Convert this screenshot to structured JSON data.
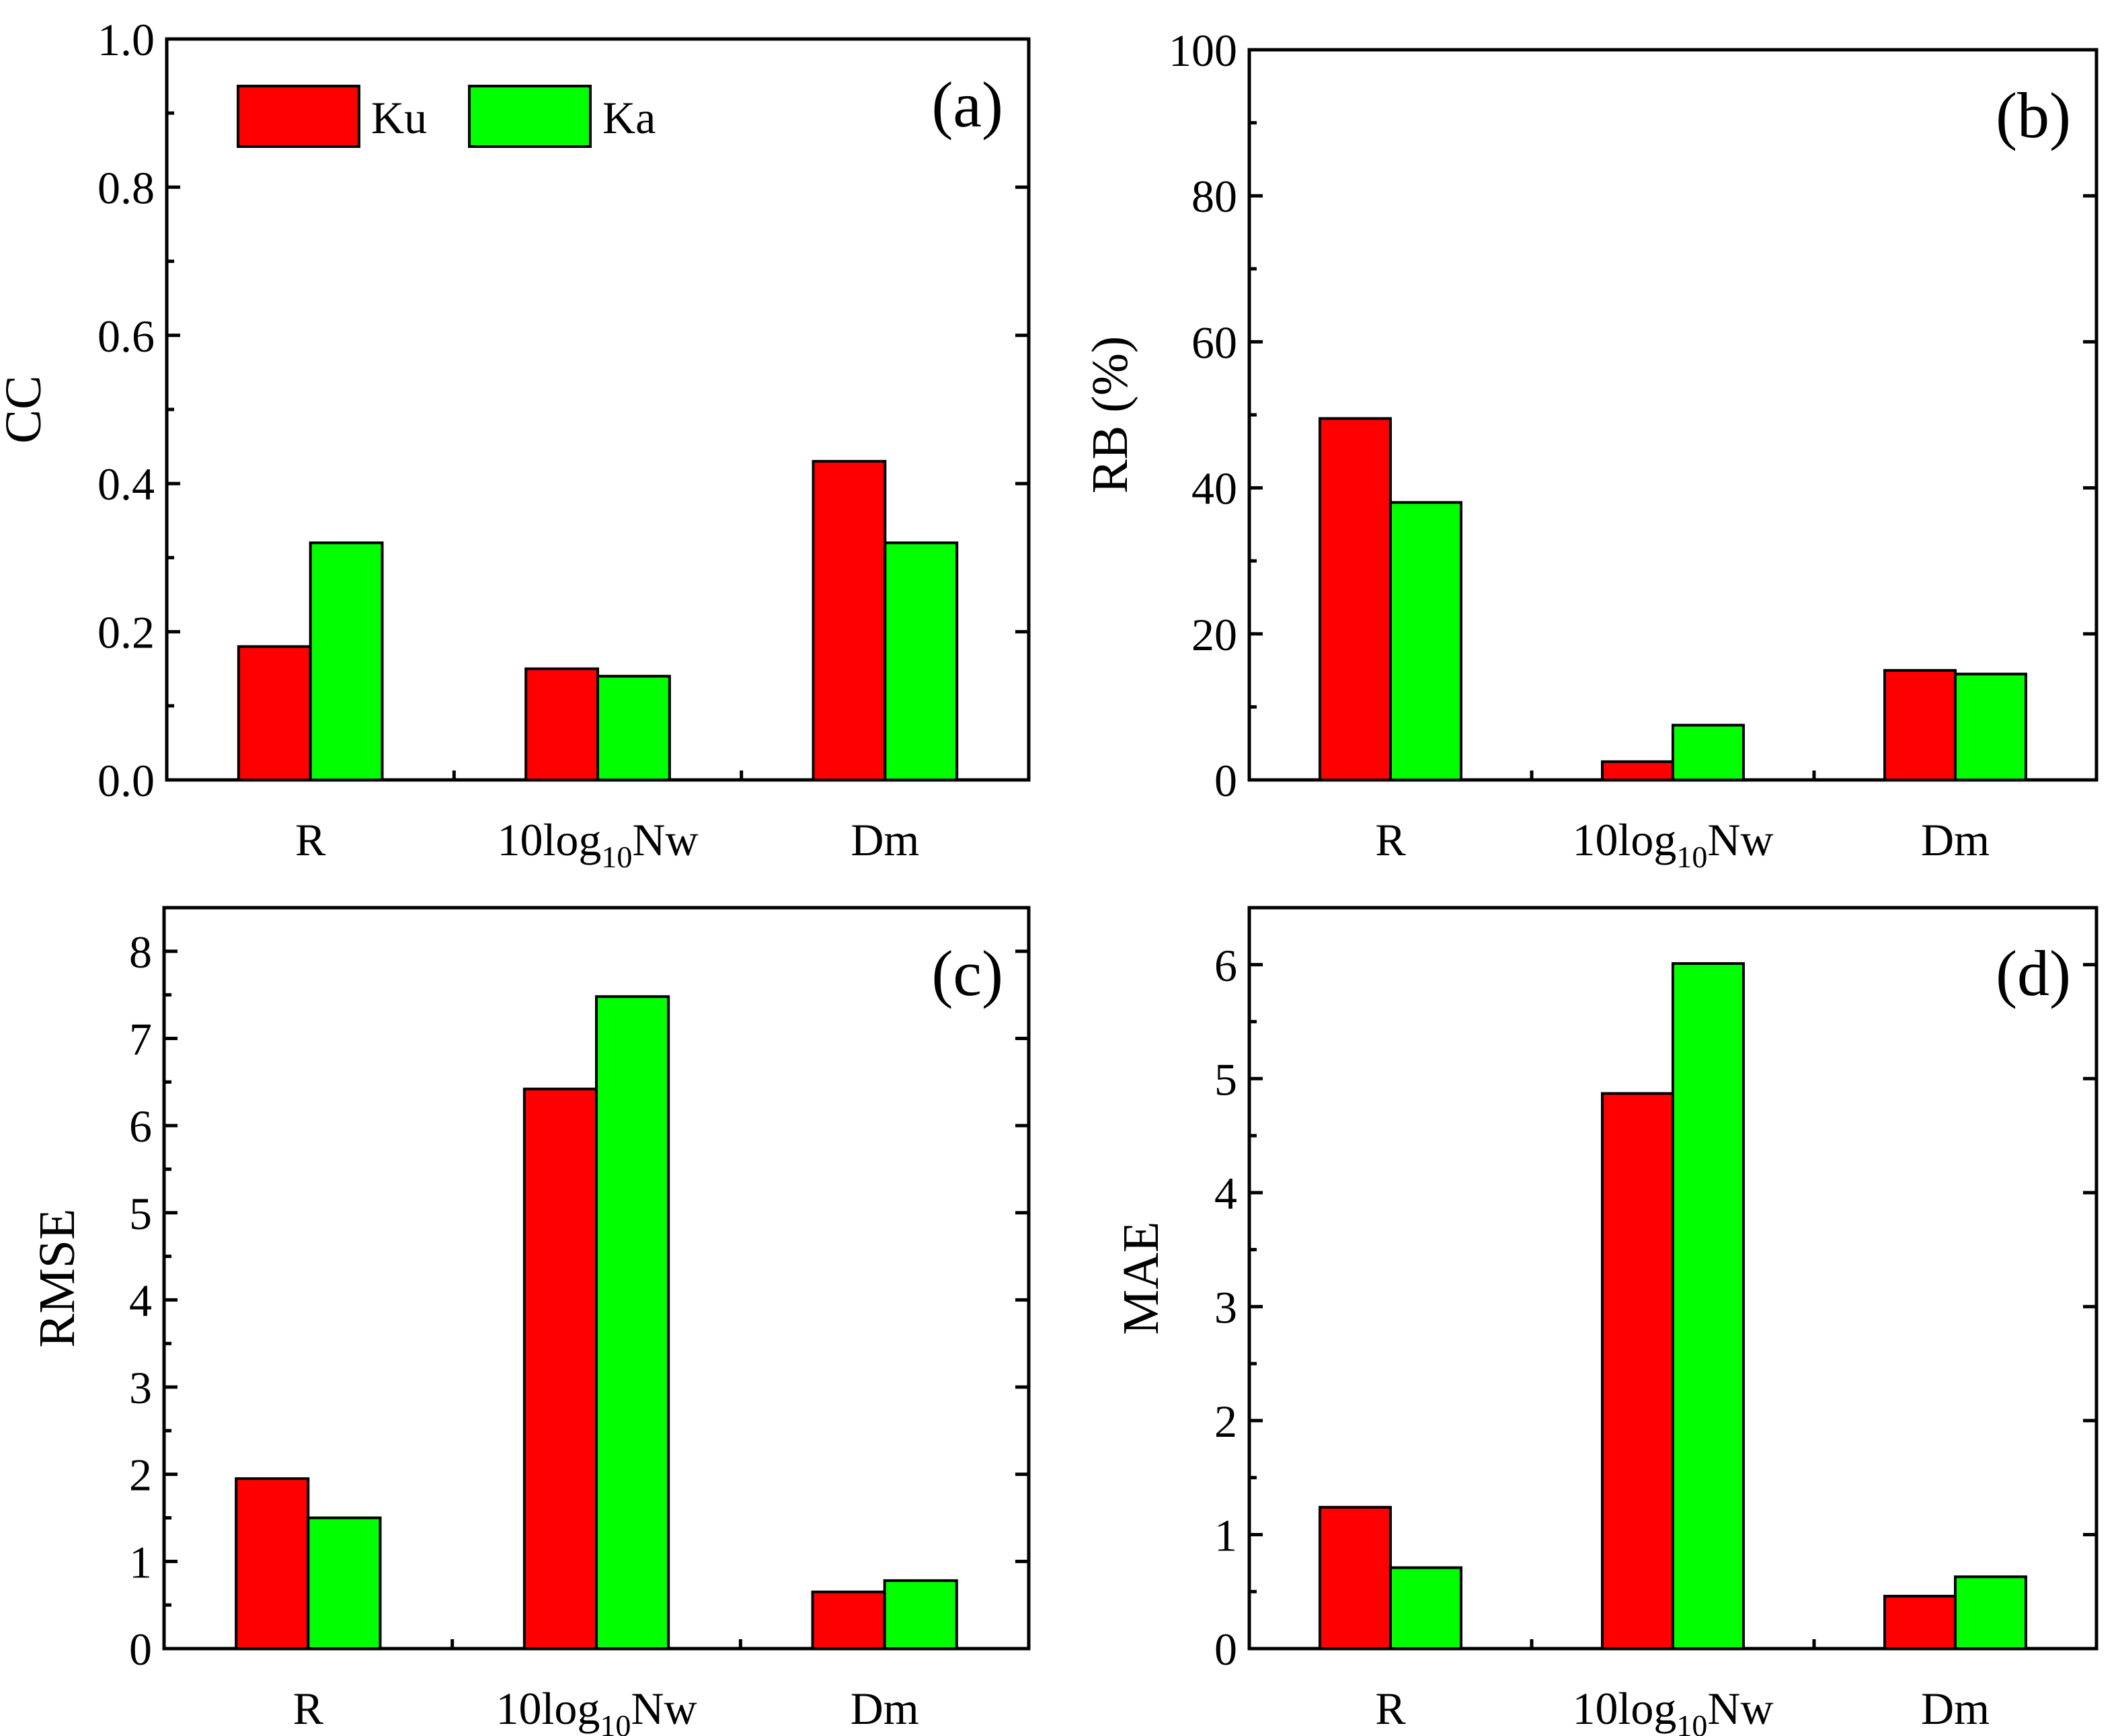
{
  "legend": {
    "entries": [
      {
        "name": "Ku",
        "color": "#ff0000"
      },
      {
        "name": "Ka",
        "color": "#00ff00"
      }
    ]
  },
  "chart_data": [
    {
      "type": "bar",
      "panel": "(a)",
      "ylabel": "CC",
      "ylim": [
        0,
        1.0
      ],
      "yticks": [
        "0.0",
        "0.2",
        "0.4",
        "0.6",
        "0.8",
        "1.0"
      ],
      "ytick_values": [
        0,
        0.2,
        0.4,
        0.6,
        0.8,
        1.0
      ],
      "minor_step": 0.1,
      "categories": [
        {
          "base": "R",
          "sub": "",
          "suffix": ""
        },
        {
          "base": "10log",
          "sub": "10",
          "suffix": "Nw"
        },
        {
          "base": "Dm",
          "sub": "",
          "suffix": ""
        }
      ],
      "series": [
        {
          "name": "Ku",
          "values": [
            0.18,
            0.15,
            0.43
          ]
        },
        {
          "name": "Ka",
          "values": [
            0.32,
            0.14,
            0.32
          ]
        }
      ],
      "show_legend": true
    },
    {
      "type": "bar",
      "panel": "(b)",
      "ylabel": "RB (%)",
      "ylim": [
        0,
        100
      ],
      "yticks": [
        "0",
        "20",
        "40",
        "60",
        "80",
        "100"
      ],
      "ytick_values": [
        0,
        20,
        40,
        60,
        80,
        100
      ],
      "minor_step": 10,
      "categories": [
        {
          "base": "R",
          "sub": "",
          "suffix": ""
        },
        {
          "base": "10log",
          "sub": "10",
          "suffix": "Nw"
        },
        {
          "base": "Dm",
          "sub": "",
          "suffix": ""
        }
      ],
      "series": [
        {
          "name": "Ku",
          "values": [
            49.5,
            2.5,
            15.0
          ]
        },
        {
          "name": "Ka",
          "values": [
            38.0,
            7.5,
            14.5
          ]
        }
      ],
      "show_legend": false
    },
    {
      "type": "bar",
      "panel": "(c)",
      "ylabel": "RMSE",
      "ylim": [
        0,
        8.5
      ],
      "yticks": [
        "0",
        "1",
        "2",
        "3",
        "4",
        "5",
        "6",
        "7",
        "8"
      ],
      "ytick_values": [
        0,
        1,
        2,
        3,
        4,
        5,
        6,
        7,
        8
      ],
      "minor_step": 0.5,
      "categories": [
        {
          "base": "R",
          "sub": "",
          "suffix": ""
        },
        {
          "base": "10log",
          "sub": "10",
          "suffix": "Nw"
        },
        {
          "base": "Dm",
          "sub": "",
          "suffix": ""
        }
      ],
      "series": [
        {
          "name": "Ku",
          "values": [
            1.95,
            6.42,
            0.65
          ]
        },
        {
          "name": "Ka",
          "values": [
            1.5,
            7.48,
            0.78
          ]
        }
      ],
      "show_legend": false
    },
    {
      "type": "bar",
      "panel": "(d)",
      "ylabel": "MAE",
      "ylim": [
        0,
        6.5
      ],
      "yticks": [
        "0",
        "1",
        "2",
        "3",
        "4",
        "5",
        "6"
      ],
      "ytick_values": [
        0,
        1,
        2,
        3,
        4,
        5,
        6
      ],
      "minor_step": 0.5,
      "categories": [
        {
          "base": "R",
          "sub": "",
          "suffix": ""
        },
        {
          "base": "10log",
          "sub": "10",
          "suffix": "Nw"
        },
        {
          "base": "Dm",
          "sub": "",
          "suffix": ""
        }
      ],
      "series": [
        {
          "name": "Ku",
          "values": [
            1.24,
            4.87,
            0.46
          ]
        },
        {
          "name": "Ka",
          "values": [
            0.71,
            6.01,
            0.63
          ]
        }
      ],
      "show_legend": false
    }
  ]
}
